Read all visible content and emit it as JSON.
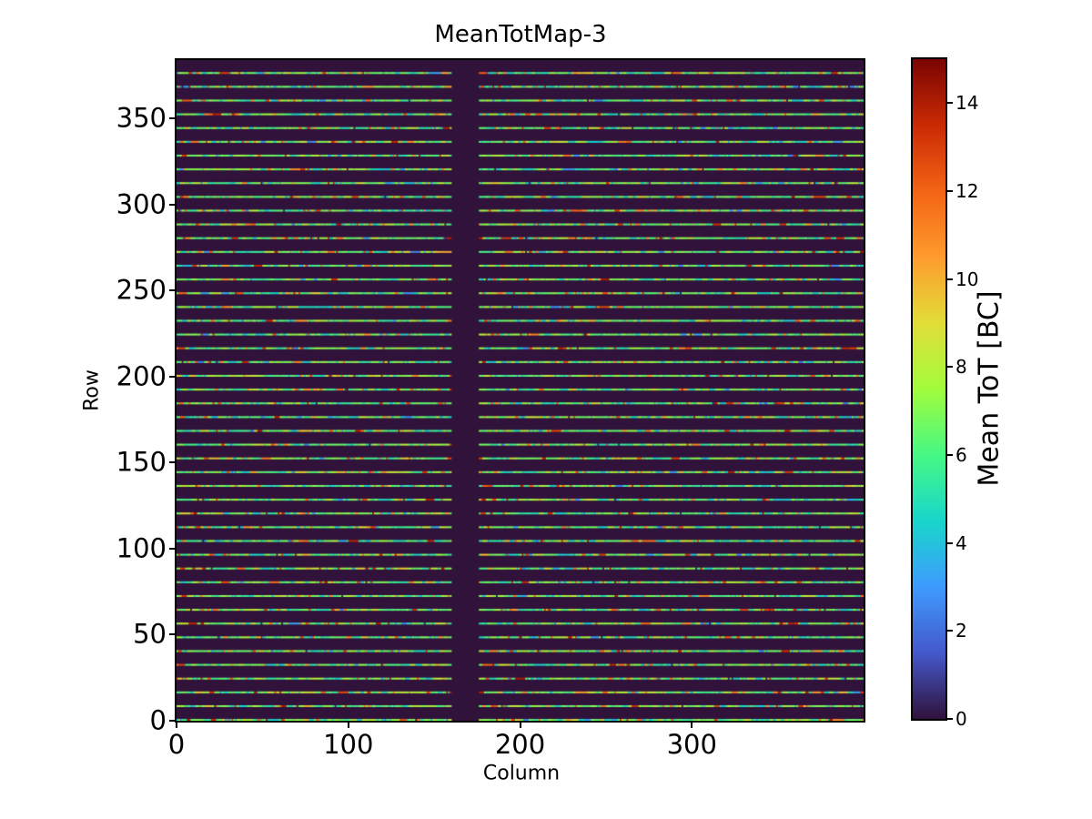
{
  "figure": {
    "background": "#ffffff"
  },
  "chart_data": {
    "type": "heatmap",
    "title": "MeanTotMap-3",
    "xlabel": "Column",
    "ylabel": "Row",
    "colorbar_label": "Mean ToT [BC]",
    "x_range": [
      0,
      400
    ],
    "y_range": [
      0,
      384
    ],
    "x_ticks": [
      0,
      100,
      200,
      300
    ],
    "y_ticks": [
      0,
      50,
      100,
      150,
      200,
      250,
      300,
      350
    ],
    "colorbar_ticks": [
      0,
      2,
      4,
      6,
      8,
      10,
      12,
      14
    ],
    "value_range": [
      0,
      15
    ],
    "colormap": "turbo",
    "colormap_stops": [
      {
        "t": 0.0,
        "c": "#30123b"
      },
      {
        "t": 0.1,
        "c": "#4458cb"
      },
      {
        "t": 0.2,
        "c": "#3e9bfe"
      },
      {
        "t": 0.3,
        "c": "#18d6cb"
      },
      {
        "t": 0.4,
        "c": "#46f884"
      },
      {
        "t": 0.5,
        "c": "#a2fc3c"
      },
      {
        "t": 0.6,
        "c": "#e1dd37"
      },
      {
        "t": 0.7,
        "c": "#fe9b2d"
      },
      {
        "t": 0.8,
        "c": "#f36315"
      },
      {
        "t": 0.9,
        "c": "#ca2a04"
      },
      {
        "t": 1.0,
        "c": "#7a0403"
      }
    ],
    "background_value": 0,
    "pattern": {
      "description": "Map is value 0 (dark purple) everywhere except bright one-row-tall horizontal stripes every 8 rows (rows 0,8,...,376). Columns 160-175 are dead (value 0, vertical dark band). Stripe pixels are mostly ToT 4-9 (cyan/green/yellow) with scattered orange/red (9-14) and blue (2-4) pixels and rare dark specks.",
      "stripe_row_start": 0,
      "stripe_row_step": 8,
      "stripe_row_count": 48,
      "dead_columns": [
        160,
        175
      ],
      "seed": 20,
      "segment_new_prob": 0.55,
      "value_distribution": [
        {
          "weight": 0.3,
          "min": 6.6,
          "max": 8.6
        },
        {
          "weight": 0.28,
          "min": 5.6,
          "max": 7.0
        },
        {
          "weight": 0.22,
          "min": 4.2,
          "max": 5.6
        },
        {
          "weight": 0.1,
          "min": 9.0,
          "max": 11.8
        },
        {
          "weight": 0.06,
          "min": 11.8,
          "max": 14.2
        },
        {
          "weight": 0.04,
          "min": 2.4,
          "max": 4.2
        }
      ],
      "speck_prob": 0.004,
      "speck_value": 0.4
    }
  }
}
